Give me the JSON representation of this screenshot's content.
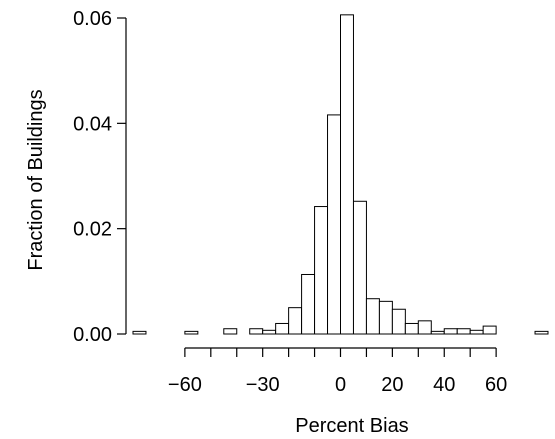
{
  "chart_data": {
    "type": "bar",
    "title": "",
    "xlabel": "Percent Bias",
    "ylabel": "Fraction of Buildings",
    "bin_width": 5,
    "xlim": [
      -80,
      80
    ],
    "ylim": [
      0,
      0.06
    ],
    "bins": [
      {
        "x0": -80,
        "x1": -75,
        "value": 0.0005
      },
      {
        "x0": -60,
        "x1": -55,
        "value": 0.0005
      },
      {
        "x0": -45,
        "x1": -40,
        "value": 0.001
      },
      {
        "x0": -35,
        "x1": -30,
        "value": 0.001
      },
      {
        "x0": -30,
        "x1": -25,
        "value": 0.0007
      },
      {
        "x0": -25,
        "x1": -20,
        "value": 0.002
      },
      {
        "x0": -20,
        "x1": -15,
        "value": 0.005
      },
      {
        "x0": -15,
        "x1": -10,
        "value": 0.0113
      },
      {
        "x0": -10,
        "x1": -5,
        "value": 0.0242
      },
      {
        "x0": -5,
        "x1": 0,
        "value": 0.0416
      },
      {
        "x0": 0,
        "x1": 5,
        "value": 0.0606
      },
      {
        "x0": 5,
        "x1": 10,
        "value": 0.0252
      },
      {
        "x0": 10,
        "x1": 15,
        "value": 0.0067
      },
      {
        "x0": 15,
        "x1": 20,
        "value": 0.0062
      },
      {
        "x0": 20,
        "x1": 25,
        "value": 0.0047
      },
      {
        "x0": 25,
        "x1": 30,
        "value": 0.002
      },
      {
        "x0": 30,
        "x1": 35,
        "value": 0.0025
      },
      {
        "x0": 35,
        "x1": 40,
        "value": 0.0005
      },
      {
        "x0": 40,
        "x1": 45,
        "value": 0.001
      },
      {
        "x0": 45,
        "x1": 50,
        "value": 0.001
      },
      {
        "x0": 50,
        "x1": 55,
        "value": 0.0007
      },
      {
        "x0": 55,
        "x1": 60,
        "value": 0.0015
      },
      {
        "x0": 75,
        "x1": 80,
        "value": 0.0005
      }
    ],
    "x_ticks": [
      -60,
      -30,
      0,
      20,
      40,
      60
    ],
    "x_minor_ticks": [
      -60,
      -50,
      -40,
      -30,
      -20,
      -10,
      0,
      10,
      20,
      30,
      40,
      50,
      60
    ],
    "x_tick_labels": [
      "−60",
      "−30",
      "0",
      "20",
      "40",
      "60"
    ],
    "y_ticks": [
      0,
      0.02,
      0.04,
      0.06
    ],
    "y_tick_labels": [
      "0.00",
      "0.02",
      "0.04",
      "0.06"
    ],
    "grid": false,
    "legend": "none"
  }
}
